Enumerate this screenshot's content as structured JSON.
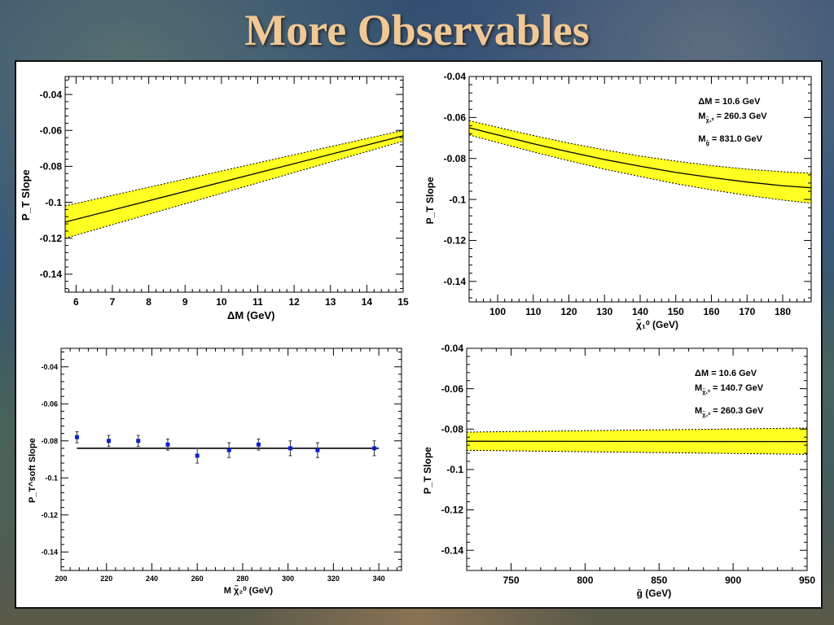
{
  "title": "More Observables",
  "colors": {
    "band": "#ffff22",
    "title": "#f0c896",
    "marker": "#1020d0"
  },
  "chart_data": [
    {
      "id": "tl",
      "type": "area",
      "xlabel": "ΔM (GeV)",
      "ylabel": "P_T Slope",
      "xlim": [
        5.7,
        15
      ],
      "ylim": [
        -0.15,
        -0.03
      ],
      "xticks": [
        6,
        7,
        8,
        9,
        10,
        11,
        12,
        13,
        14,
        15
      ],
      "yticks": [
        -0.04,
        -0.06,
        -0.08,
        -0.1,
        -0.12,
        -0.14
      ],
      "ytick_labels": [
        "-0.04",
        "-0.06",
        "-0.08",
        "-0.1",
        "-0.12",
        "-0.14"
      ],
      "series": [
        {
          "role": "central",
          "x": [
            5.7,
            15
          ],
          "y": [
            -0.111,
            -0.063
          ]
        },
        {
          "role": "upper",
          "x": [
            5.7,
            15
          ],
          "y": [
            -0.102,
            -0.06
          ]
        },
        {
          "role": "lower",
          "x": [
            5.7,
            15
          ],
          "y": [
            -0.12,
            -0.066
          ]
        }
      ],
      "annotations": []
    },
    {
      "id": "tr",
      "type": "area",
      "xlabel": "χ̃₁⁰ (GeV)",
      "ylabel": "P_T Slope",
      "xlim": [
        92,
        188
      ],
      "ylim": [
        -0.15,
        -0.04
      ],
      "xticks": [
        100,
        110,
        120,
        130,
        140,
        150,
        160,
        170,
        180
      ],
      "yticks": [
        -0.04,
        -0.06,
        -0.08,
        -0.1,
        -0.12,
        -0.14
      ],
      "ytick_labels": [
        "-0.04",
        "-0.06",
        "-0.08",
        "-0.1",
        "-0.12",
        "-0.14"
      ],
      "series": [
        {
          "role": "central",
          "x": [
            92,
            100,
            110,
            120,
            130,
            140,
            150,
            160,
            170,
            180,
            188
          ],
          "y": [
            -0.065,
            -0.0685,
            -0.0728,
            -0.0768,
            -0.0805,
            -0.0838,
            -0.0868,
            -0.0893,
            -0.0915,
            -0.0933,
            -0.0943
          ]
        },
        {
          "role": "upper",
          "x": [
            92,
            100,
            110,
            120,
            130,
            140,
            150,
            160,
            170,
            180,
            188
          ],
          "y": [
            -0.0615,
            -0.0648,
            -0.0688,
            -0.0725,
            -0.0758,
            -0.0788,
            -0.0813,
            -0.0835,
            -0.0852,
            -0.0865,
            -0.0872
          ]
        },
        {
          "role": "lower",
          "x": [
            92,
            100,
            110,
            120,
            130,
            140,
            150,
            160,
            170,
            180,
            188
          ],
          "y": [
            -0.0685,
            -0.0722,
            -0.0768,
            -0.0811,
            -0.0852,
            -0.0888,
            -0.0923,
            -0.0953,
            -0.098,
            -0.1003,
            -0.1018
          ]
        }
      ],
      "annotations": [
        {
          "main": "ΔM = 10.6 GeV",
          "sub": ""
        },
        {
          "main": "M",
          "sub": "χ̃₂⁰",
          "rest": " = 260.3 GeV"
        },
        {
          "main": "M",
          "sub": "g̃",
          "rest": " = 831.0 GeV"
        }
      ]
    },
    {
      "id": "bl",
      "type": "scatter",
      "xlabel": "M χ̃₂⁰ (GeV)",
      "ylabel": "P_T^soft Slope",
      "xlim": [
        200,
        350
      ],
      "ylim": [
        -0.15,
        -0.03
      ],
      "xticks": [
        200,
        220,
        240,
        260,
        280,
        300,
        320,
        340
      ],
      "yticks": [
        -0.04,
        -0.06,
        -0.08,
        -0.1,
        -0.12,
        -0.14
      ],
      "ytick_labels": [
        "-0.04",
        "-0.06",
        "-0.08",
        "-0.1",
        "-0.12",
        "-0.14"
      ],
      "points": [
        {
          "x": 207,
          "y": -0.078,
          "err": 0.003
        },
        {
          "x": 221,
          "y": -0.08,
          "err": 0.003
        },
        {
          "x": 234,
          "y": -0.08,
          "err": 0.003
        },
        {
          "x": 247,
          "y": -0.082,
          "err": 0.003
        },
        {
          "x": 260,
          "y": -0.088,
          "err": 0.004
        },
        {
          "x": 274,
          "y": -0.085,
          "err": 0.004
        },
        {
          "x": 287,
          "y": -0.082,
          "err": 0.003
        },
        {
          "x": 301,
          "y": -0.084,
          "err": 0.004
        },
        {
          "x": 313,
          "y": -0.085,
          "err": 0.004
        },
        {
          "x": 338,
          "y": -0.084,
          "err": 0.004
        }
      ],
      "fit_line": {
        "x": [
          207,
          340
        ],
        "y": [
          -0.084,
          -0.084
        ]
      },
      "annotations": []
    },
    {
      "id": "br",
      "type": "area",
      "xlabel": "g̃ (GeV)",
      "ylabel": "P_T Slope",
      "xlim": [
        720,
        950
      ],
      "ylim": [
        -0.15,
        -0.04
      ],
      "xticks": [
        750,
        800,
        850,
        900,
        950
      ],
      "xtick_labels": [
        "750",
        "800",
        "850",
        "900",
        "950"
      ],
      "yticks": [
        -0.04,
        -0.06,
        -0.08,
        -0.1,
        -0.12,
        -0.14
      ],
      "ytick_labels": [
        "-0.04",
        "-0.06",
        "-0.08",
        "-0.1",
        "-0.12",
        "-0.14"
      ],
      "series": [
        {
          "role": "central",
          "x": [
            720,
            950
          ],
          "y": [
            -0.086,
            -0.0862
          ]
        },
        {
          "role": "upper",
          "x": [
            720,
            950
          ],
          "y": [
            -0.0815,
            -0.0795
          ]
        },
        {
          "role": "lower",
          "x": [
            720,
            950
          ],
          "y": [
            -0.0905,
            -0.0925
          ]
        }
      ],
      "annotations": [
        {
          "main": "ΔM = 10.6 GeV",
          "sub": ""
        },
        {
          "main": "M",
          "sub": "χ̃₁⁰",
          "rest": " = 140.7 GeV"
        },
        {
          "main": "M",
          "sub": "χ̃₂⁰",
          "rest": " = 260.3 GeV"
        }
      ]
    }
  ]
}
